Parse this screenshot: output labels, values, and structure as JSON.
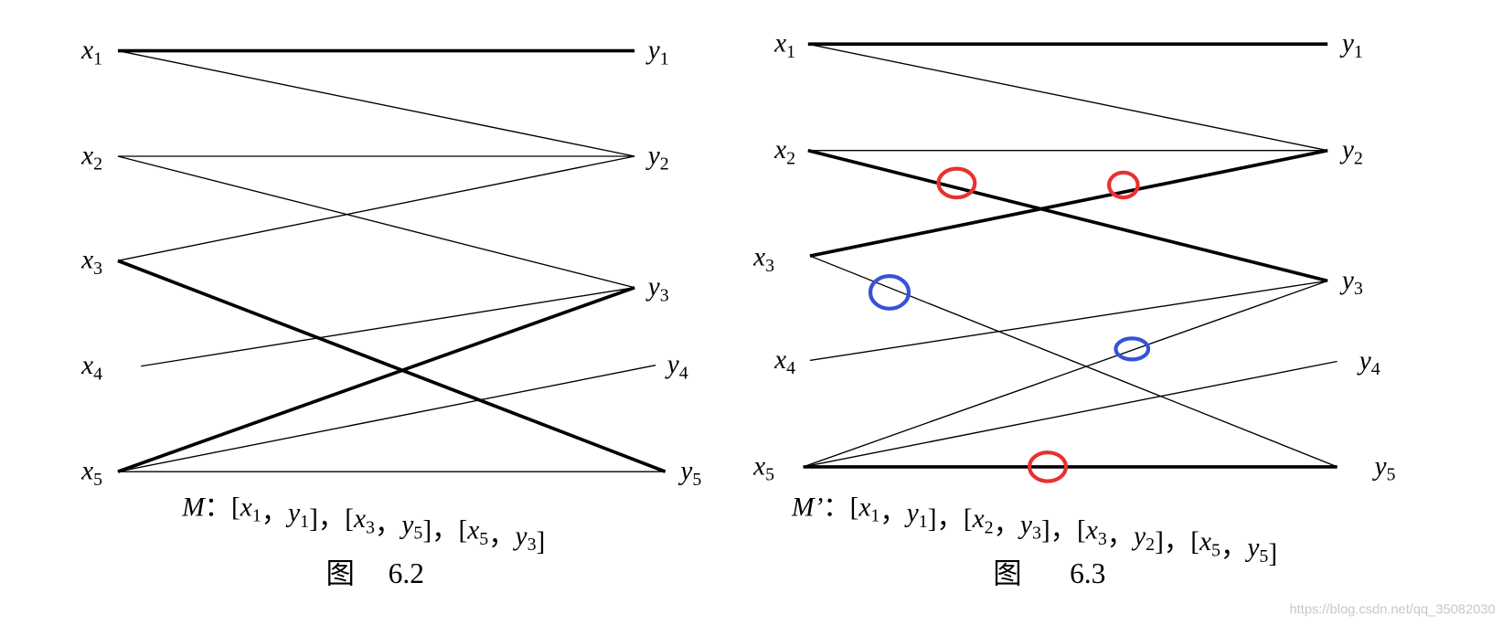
{
  "figures": [
    {
      "nodes_left": [
        {
          "var": "x",
          "sub": "1"
        },
        {
          "var": "x",
          "sub": "2"
        },
        {
          "var": "x",
          "sub": "3"
        },
        {
          "var": "x",
          "sub": "4"
        },
        {
          "var": "x",
          "sub": "5"
        }
      ],
      "nodes_right": [
        {
          "var": "y",
          "sub": "1"
        },
        {
          "var": "y",
          "sub": "2"
        },
        {
          "var": "y",
          "sub": "3"
        },
        {
          "var": "y",
          "sub": "4"
        },
        {
          "var": "y",
          "sub": "5"
        }
      ],
      "edges": [
        {
          "from": 0,
          "to": 0,
          "bold": true
        },
        {
          "from": 0,
          "to": 1,
          "bold": false
        },
        {
          "from": 1,
          "to": 1,
          "bold": false
        },
        {
          "from": 1,
          "to": 2,
          "bold": false
        },
        {
          "from": 2,
          "to": 1,
          "bold": false
        },
        {
          "from": 2,
          "to": 4,
          "bold": true
        },
        {
          "from": 3,
          "to": 2,
          "bold": false
        },
        {
          "from": 4,
          "to": 2,
          "bold": true
        },
        {
          "from": 4,
          "to": 3,
          "bold": false
        },
        {
          "from": 4,
          "to": 4,
          "bold": false
        }
      ],
      "matching": {
        "name": "M",
        "colon": "：",
        "open": "[",
        "close": "]",
        "comma": "，",
        "pairs": [
          {
            "left": {
              "var": "x",
              "sub": "1"
            },
            "right": {
              "var": "y",
              "sub": "1"
            }
          },
          {
            "left": {
              "var": "x",
              "sub": "3"
            },
            "right": {
              "var": "y",
              "sub": "5"
            }
          },
          {
            "left": {
              "var": "x",
              "sub": "5"
            },
            "right": {
              "var": "y",
              "sub": "3"
            }
          }
        ]
      },
      "caption": {
        "prefix": "图",
        "number": "6.2"
      }
    },
    {
      "nodes_left": [
        {
          "var": "x",
          "sub": "1"
        },
        {
          "var": "x",
          "sub": "2"
        },
        {
          "var": "x",
          "sub": "3"
        },
        {
          "var": "x",
          "sub": "4"
        },
        {
          "var": "x",
          "sub": "5"
        }
      ],
      "nodes_right": [
        {
          "var": "y",
          "sub": "1"
        },
        {
          "var": "y",
          "sub": "2"
        },
        {
          "var": "y",
          "sub": "3"
        },
        {
          "var": "y",
          "sub": "4"
        },
        {
          "var": "y",
          "sub": "5"
        }
      ],
      "edges": [
        {
          "from": 0,
          "to": 0,
          "bold": true
        },
        {
          "from": 0,
          "to": 1,
          "bold": false
        },
        {
          "from": 1,
          "to": 1,
          "bold": false
        },
        {
          "from": 1,
          "to": 2,
          "bold": true
        },
        {
          "from": 2,
          "to": 1,
          "bold": true
        },
        {
          "from": 2,
          "to": 4,
          "bold": false
        },
        {
          "from": 3,
          "to": 2,
          "bold": false
        },
        {
          "from": 4,
          "to": 2,
          "bold": false
        },
        {
          "from": 4,
          "to": 3,
          "bold": false
        },
        {
          "from": 4,
          "to": 4,
          "bold": true
        }
      ],
      "matching": {
        "name": "M’",
        "colon": "：",
        "open": "[",
        "close": "]",
        "comma": "，",
        "pairs": [
          {
            "left": {
              "var": "x",
              "sub": "1"
            },
            "right": {
              "var": "y",
              "sub": "1"
            }
          },
          {
            "left": {
              "var": "x",
              "sub": "2"
            },
            "right": {
              "var": "y",
              "sub": "3"
            }
          },
          {
            "left": {
              "var": "x",
              "sub": "3"
            },
            "right": {
              "var": "y",
              "sub": "2"
            }
          },
          {
            "left": {
              "var": "x",
              "sub": "5"
            },
            "right": {
              "var": "y",
              "sub": "5"
            }
          }
        ]
      },
      "caption": {
        "prefix": "图",
        "number": "6.3"
      }
    }
  ],
  "watermark": "https://blog.csdn.net/qq_35082030"
}
